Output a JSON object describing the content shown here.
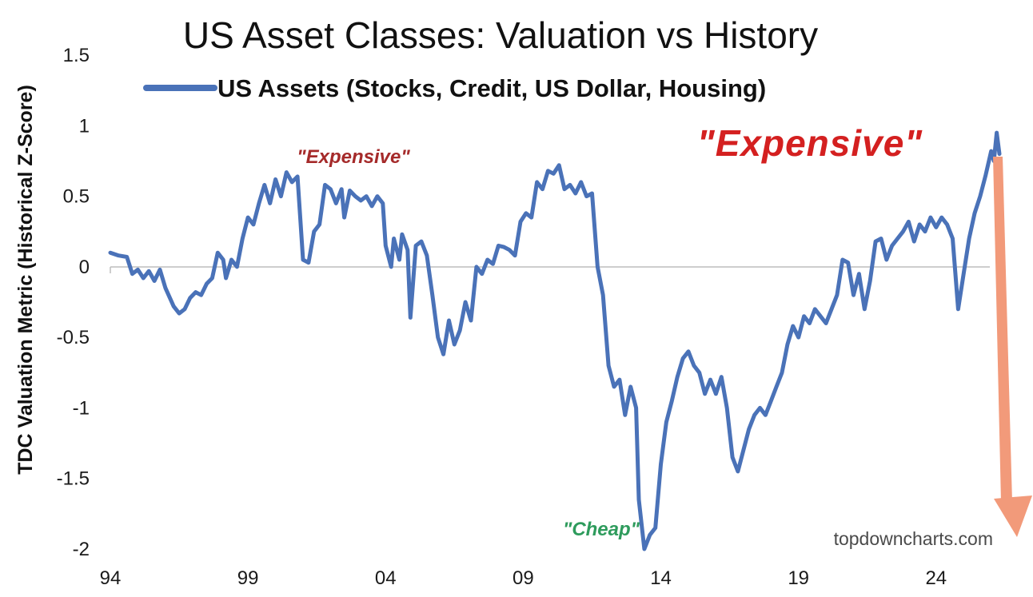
{
  "chart_data": {
    "type": "line",
    "title": "US Asset Classes: Valuation vs History",
    "ylabel": "TDC Valuation Metric (Historical Z-Score)",
    "xlabel": "",
    "ylim": [
      -2,
      1.5
    ],
    "y_ticks": [
      "1.5",
      "1",
      "0.5",
      "0",
      "-0.5",
      "-1",
      "-1.5",
      "-2"
    ],
    "x_ticks": [
      "94",
      "99",
      "04",
      "09",
      "14",
      "19",
      "24"
    ],
    "xlim": [
      1994,
      2026.3
    ],
    "grid": false,
    "legend_position": "top",
    "series": [
      {
        "name": "US Assets (Stocks, Credit, US Dollar, Housing)",
        "color": "#4a72b8",
        "points": [
          [
            1994.0,
            0.1
          ],
          [
            1994.3,
            0.08
          ],
          [
            1994.6,
            0.07
          ],
          [
            1994.8,
            -0.05
          ],
          [
            1995.0,
            -0.02
          ],
          [
            1995.2,
            -0.08
          ],
          [
            1995.4,
            -0.03
          ],
          [
            1995.6,
            -0.1
          ],
          [
            1995.8,
            -0.02
          ],
          [
            1996.0,
            -0.15
          ],
          [
            1996.3,
            -0.28
          ],
          [
            1996.5,
            -0.33
          ],
          [
            1996.7,
            -0.3
          ],
          [
            1996.9,
            -0.22
          ],
          [
            1997.1,
            -0.18
          ],
          [
            1997.3,
            -0.2
          ],
          [
            1997.5,
            -0.12
          ],
          [
            1997.7,
            -0.08
          ],
          [
            1997.9,
            0.1
          ],
          [
            1998.1,
            0.05
          ],
          [
            1998.2,
            -0.08
          ],
          [
            1998.4,
            0.05
          ],
          [
            1998.6,
            0.0
          ],
          [
            1998.8,
            0.2
          ],
          [
            1999.0,
            0.35
          ],
          [
            1999.2,
            0.3
          ],
          [
            1999.4,
            0.45
          ],
          [
            1999.6,
            0.58
          ],
          [
            1999.8,
            0.45
          ],
          [
            2000.0,
            0.62
          ],
          [
            2000.2,
            0.5
          ],
          [
            2000.4,
            0.67
          ],
          [
            2000.6,
            0.6
          ],
          [
            2000.8,
            0.64
          ],
          [
            2001.0,
            0.05
          ],
          [
            2001.2,
            0.03
          ],
          [
            2001.4,
            0.25
          ],
          [
            2001.6,
            0.3
          ],
          [
            2001.8,
            0.58
          ],
          [
            2002.0,
            0.55
          ],
          [
            2002.2,
            0.45
          ],
          [
            2002.4,
            0.55
          ],
          [
            2002.5,
            0.35
          ],
          [
            2002.7,
            0.54
          ],
          [
            2002.9,
            0.5
          ],
          [
            2003.1,
            0.47
          ],
          [
            2003.3,
            0.5
          ],
          [
            2003.5,
            0.43
          ],
          [
            2003.7,
            0.5
          ],
          [
            2003.9,
            0.45
          ],
          [
            2004.0,
            0.15
          ],
          [
            2004.2,
            0.0
          ],
          [
            2004.3,
            0.2
          ],
          [
            2004.5,
            0.05
          ],
          [
            2004.6,
            0.23
          ],
          [
            2004.8,
            0.12
          ],
          [
            2004.9,
            -0.36
          ],
          [
            2005.1,
            0.15
          ],
          [
            2005.3,
            0.18
          ],
          [
            2005.5,
            0.08
          ],
          [
            2005.7,
            -0.2
          ],
          [
            2005.9,
            -0.5
          ],
          [
            2006.1,
            -0.62
          ],
          [
            2006.3,
            -0.38
          ],
          [
            2006.5,
            -0.55
          ],
          [
            2006.7,
            -0.45
          ],
          [
            2006.9,
            -0.25
          ],
          [
            2007.1,
            -0.38
          ],
          [
            2007.3,
            0.0
          ],
          [
            2007.5,
            -0.05
          ],
          [
            2007.7,
            0.05
          ],
          [
            2007.9,
            0.02
          ],
          [
            2008.1,
            0.15
          ],
          [
            2008.3,
            0.14
          ],
          [
            2008.5,
            0.12
          ],
          [
            2008.7,
            0.08
          ],
          [
            2008.9,
            0.32
          ],
          [
            2009.1,
            0.38
          ],
          [
            2009.3,
            0.35
          ],
          [
            2009.5,
            0.6
          ],
          [
            2009.7,
            0.55
          ],
          [
            2009.9,
            0.68
          ],
          [
            2010.1,
            0.66
          ],
          [
            2010.3,
            0.72
          ],
          [
            2010.5,
            0.55
          ],
          [
            2010.7,
            0.58
          ],
          [
            2010.9,
            0.52
          ],
          [
            2011.1,
            0.6
          ],
          [
            2011.3,
            0.5
          ],
          [
            2011.5,
            0.52
          ],
          [
            2011.7,
            0.0
          ],
          [
            2011.9,
            -0.2
          ],
          [
            2012.1,
            -0.7
          ],
          [
            2012.3,
            -0.85
          ],
          [
            2012.5,
            -0.8
          ],
          [
            2012.7,
            -1.05
          ],
          [
            2012.9,
            -0.85
          ],
          [
            2013.1,
            -1.0
          ],
          [
            2013.2,
            -1.65
          ],
          [
            2013.4,
            -2.0
          ],
          [
            2013.6,
            -1.9
          ],
          [
            2013.8,
            -1.85
          ],
          [
            2014.0,
            -1.4
          ],
          [
            2014.2,
            -1.1
          ],
          [
            2014.4,
            -0.95
          ],
          [
            2014.6,
            -0.78
          ],
          [
            2014.8,
            -0.65
          ],
          [
            2015.0,
            -0.6
          ],
          [
            2015.2,
            -0.7
          ],
          [
            2015.4,
            -0.75
          ],
          [
            2015.6,
            -0.9
          ],
          [
            2015.8,
            -0.8
          ],
          [
            2016.0,
            -0.9
          ],
          [
            2016.2,
            -0.78
          ],
          [
            2016.4,
            -1.0
          ],
          [
            2016.6,
            -1.35
          ],
          [
            2016.8,
            -1.45
          ],
          [
            2017.0,
            -1.3
          ],
          [
            2017.2,
            -1.15
          ],
          [
            2017.4,
            -1.05
          ],
          [
            2017.6,
            -1.0
          ],
          [
            2017.8,
            -1.05
          ],
          [
            2018.0,
            -0.95
          ],
          [
            2018.2,
            -0.85
          ],
          [
            2018.4,
            -0.75
          ],
          [
            2018.6,
            -0.55
          ],
          [
            2018.8,
            -0.42
          ],
          [
            2019.0,
            -0.5
          ],
          [
            2019.2,
            -0.35
          ],
          [
            2019.4,
            -0.4
          ],
          [
            2019.6,
            -0.3
          ],
          [
            2019.8,
            -0.35
          ],
          [
            2020.0,
            -0.4
          ],
          [
            2020.2,
            -0.3
          ],
          [
            2020.4,
            -0.2
          ],
          [
            2020.6,
            0.05
          ],
          [
            2020.8,
            0.03
          ],
          [
            2021.0,
            -0.2
          ],
          [
            2021.2,
            -0.05
          ],
          [
            2021.4,
            -0.3
          ],
          [
            2021.6,
            -0.1
          ],
          [
            2021.8,
            0.18
          ],
          [
            2022.0,
            0.2
          ],
          [
            2022.2,
            0.05
          ],
          [
            2022.4,
            0.15
          ],
          [
            2022.6,
            0.2
          ],
          [
            2022.8,
            0.25
          ],
          [
            2023.0,
            0.32
          ],
          [
            2023.2,
            0.18
          ],
          [
            2023.4,
            0.3
          ],
          [
            2023.6,
            0.25
          ],
          [
            2023.8,
            0.35
          ],
          [
            2024.0,
            0.28
          ],
          [
            2024.2,
            0.35
          ],
          [
            2024.4,
            0.3
          ],
          [
            2024.6,
            0.2
          ],
          [
            2024.8,
            -0.3
          ],
          [
            2025.0,
            -0.05
          ],
          [
            2025.2,
            0.2
          ],
          [
            2025.4,
            0.38
          ],
          [
            2025.6,
            0.5
          ],
          [
            2025.8,
            0.65
          ],
          [
            2026.0,
            0.82
          ],
          [
            2026.1,
            0.75
          ],
          [
            2026.2,
            0.95
          ],
          [
            2026.3,
            0.8
          ]
        ]
      }
    ],
    "annotations": [
      {
        "text": "\"Expensive\"",
        "color": "#a52a2a"
      },
      {
        "text": "\"Cheap\"",
        "color": "#2e9b5c"
      },
      {
        "text": "\"Expensive\"",
        "color": "#d42020"
      }
    ],
    "arrow_color": "#f29a7a",
    "source": "topdowncharts.com"
  }
}
